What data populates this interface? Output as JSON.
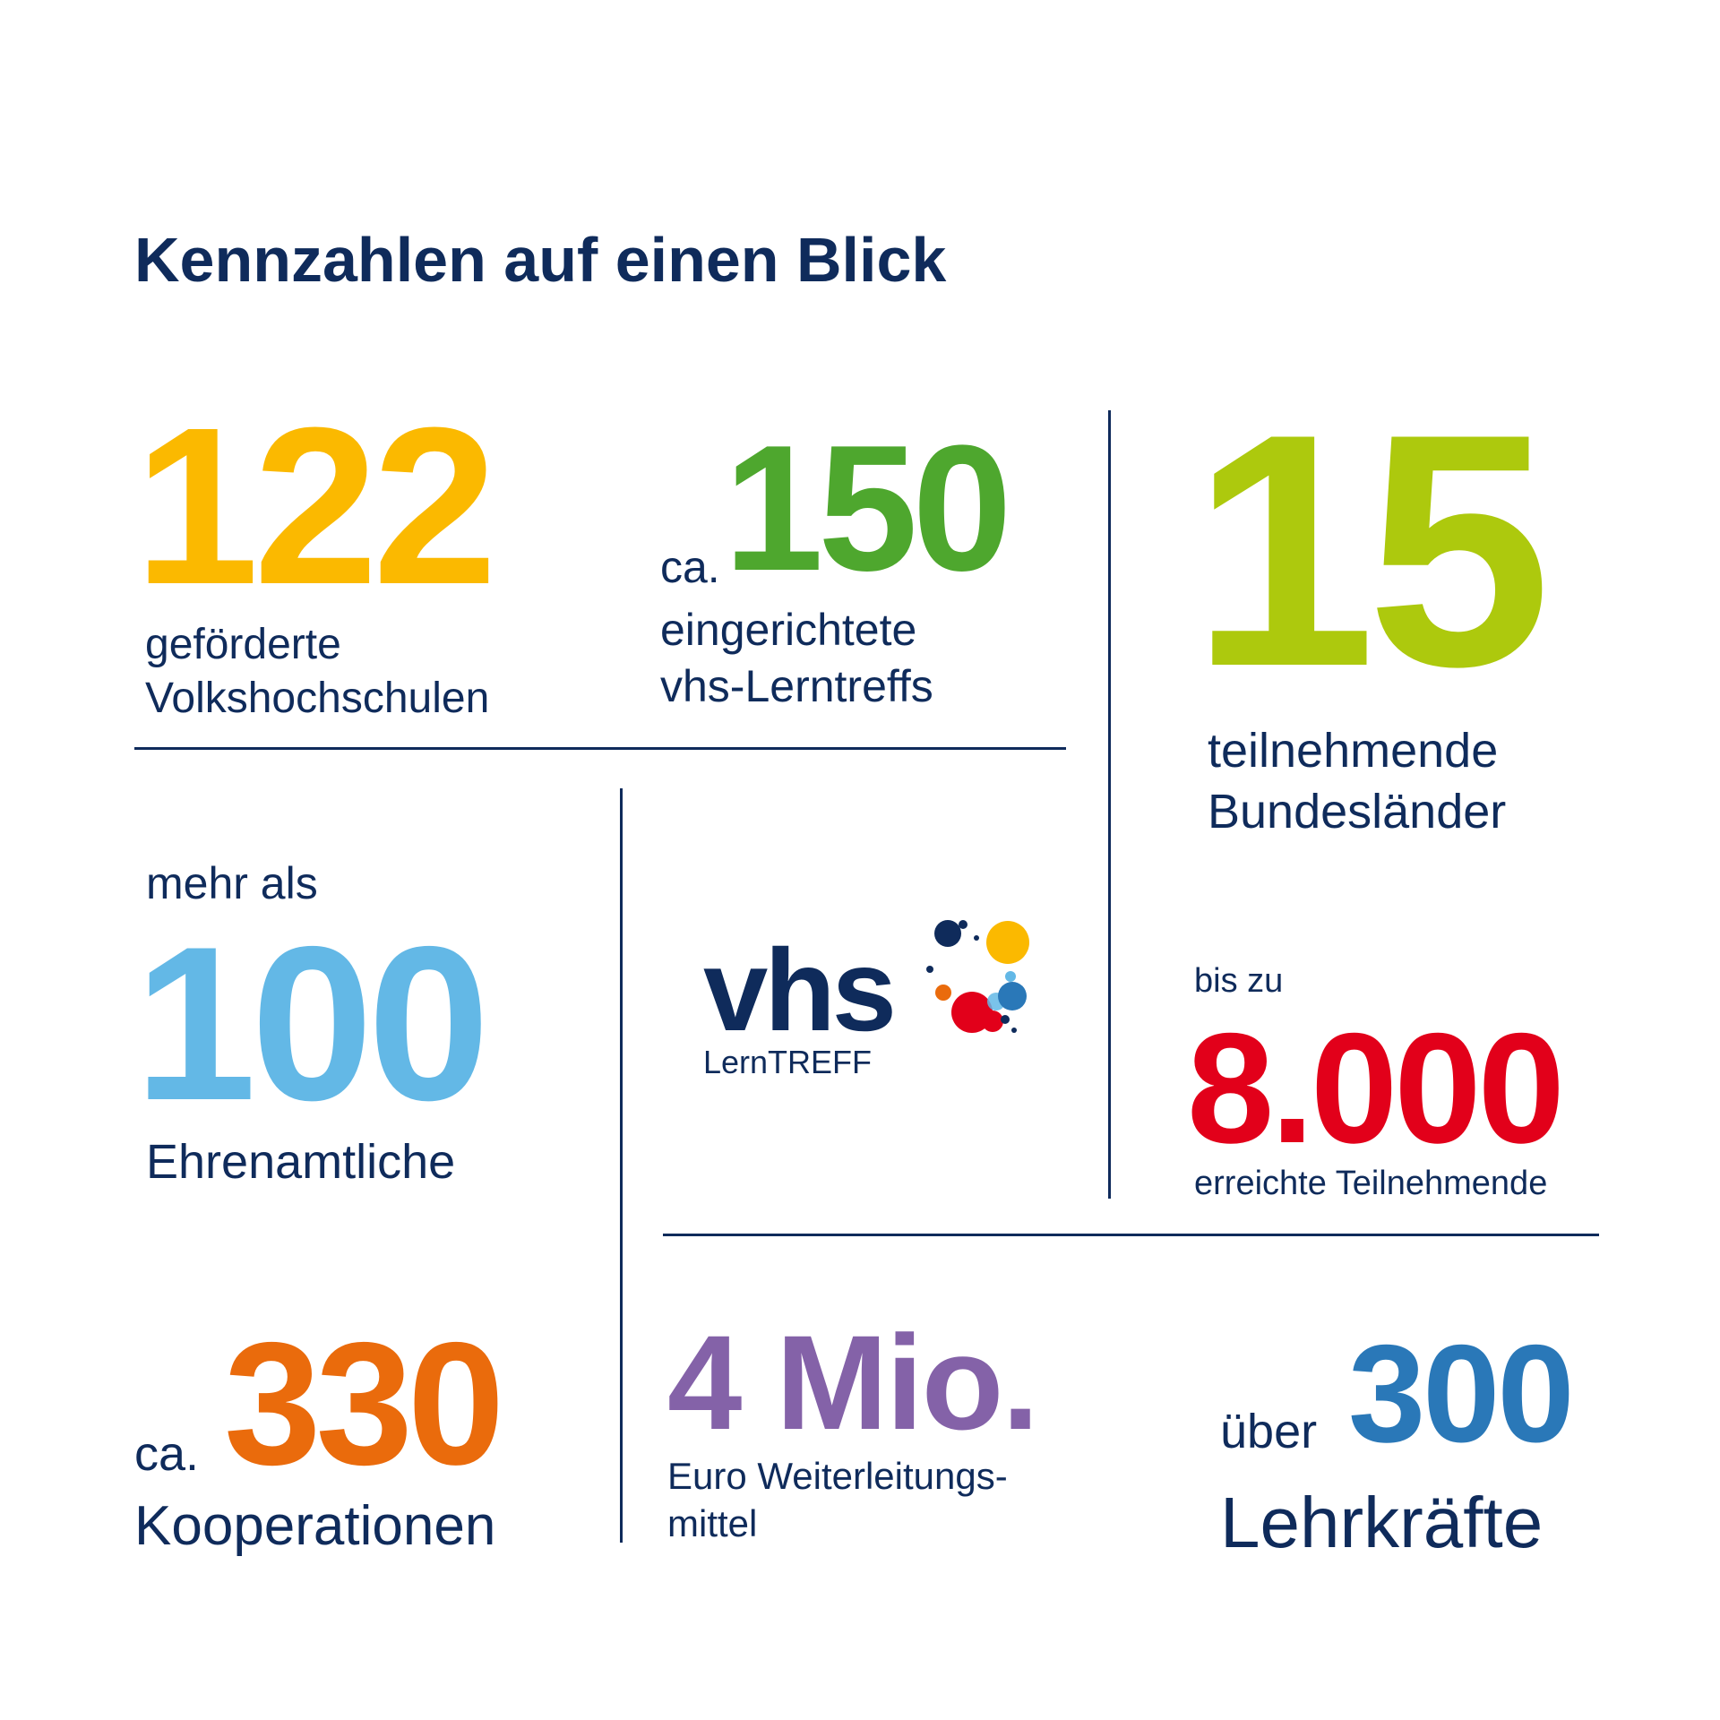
{
  "title": "Kennzahlen auf einen Blick",
  "colors": {
    "navy": "#0f2b5b",
    "yellow": "#fbb900",
    "green": "#4ea72e",
    "lime": "#adc90d",
    "sky": "#63b8e6",
    "red": "#e2001a",
    "orange": "#ea6b0c",
    "purple": "#8462a8",
    "blue": "#2a78b8"
  },
  "stats": {
    "volkshochschulen": {
      "value": "122",
      "label_line1": "geförderte",
      "label_line2": "Volkshochschulen"
    },
    "lerntreffs": {
      "prefix": "ca.",
      "value": "150",
      "label_line1": "eingerichtete",
      "label_line2": "vhs-Lerntreffs"
    },
    "bundeslaender": {
      "value": "15",
      "label_line1": "teilnehmende",
      "label_line2": "Bundesländer"
    },
    "ehrenamtliche": {
      "prefix": "mehr als",
      "value": "100",
      "label": "Ehrenamtliche"
    },
    "teilnehmende": {
      "prefix": "bis zu",
      "value": "8.000",
      "label": "erreichte Teilnehmende"
    },
    "kooperationen": {
      "prefix": "ca.",
      "value": "330",
      "label": "Kooperationen"
    },
    "weiterleitungsmittel": {
      "value": "4 Mio.",
      "label_line1": "Euro Weiterleitungs-",
      "label_line2": "mittel"
    },
    "lehrkraefte": {
      "prefix": "über",
      "value": "300",
      "label": "Lehrkräfte"
    }
  },
  "logo": {
    "text": "vhs",
    "subtitle": "LernTREFF",
    "icon": "colored-dots-icon"
  }
}
